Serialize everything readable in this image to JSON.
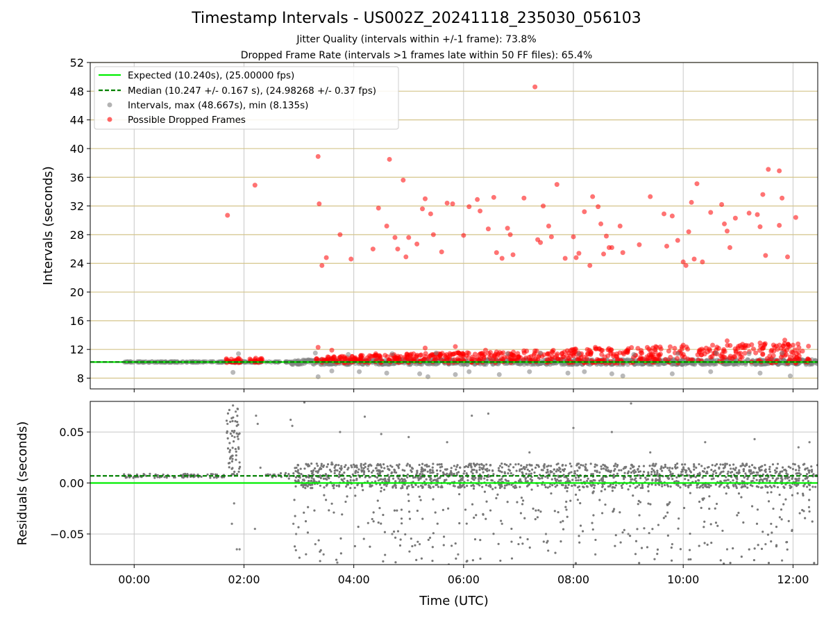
{
  "chart_data": [
    {
      "type": "scatter",
      "title": "Timestamp Intervals - US002Z_20241118_235030_056103",
      "subtitles": [
        "Jitter Quality (intervals within +/-1 frame): 73.8%",
        "Dropped Frame Rate (intervals >1 frames late within 50 FF files): 65.4%"
      ],
      "ylabel": "Intervals (seconds)",
      "ylim": [
        6.5,
        52
      ],
      "yticks": [
        "8",
        "12",
        "16",
        "20",
        "24",
        "28",
        "32",
        "36",
        "40",
        "44",
        "48",
        "52"
      ],
      "xlim_hours": [
        -0.8,
        12.45
      ],
      "grid": "y: horizontal tan lines; x: vertical gray lines at ticks",
      "legend_position": "top-left",
      "legend": [
        "Expected (10.240s), (25.00000 fps)",
        "Median (10.247 +/- 0.167 s), (24.98268 +/- 0.37 fps)",
        "Intervals, max (48.667s), min (8.135s)",
        "Possible Dropped Frames"
      ],
      "expected": 10.24,
      "median": 10.247,
      "series": [
        {
          "name": "Intervals, max (48.667s), min (8.135s)",
          "color": "#808080",
          "points": [
            [
              1.8,
              8.8
            ],
            [
              3.35,
              8.2
            ],
            [
              3.6,
              9.0
            ],
            [
              4.1,
              8.9
            ],
            [
              4.6,
              8.7
            ],
            [
              5.2,
              8.6
            ],
            [
              5.35,
              8.2
            ],
            [
              5.85,
              8.5
            ],
            [
              6.1,
              8.9
            ],
            [
              6.65,
              8.5
            ],
            [
              7.2,
              8.9
            ],
            [
              7.9,
              8.7
            ],
            [
              8.2,
              8.9
            ],
            [
              8.7,
              8.6
            ],
            [
              8.9,
              8.3
            ],
            [
              9.8,
              8.6
            ],
            [
              10.5,
              8.9
            ],
            [
              11.4,
              8.7
            ],
            [
              11.95,
              8.3
            ],
            [
              1.9,
              11.4
            ],
            [
              3.3,
              11.5
            ],
            [
              3.9,
              11.3
            ],
            [
              4.7,
              11.4
            ],
            [
              5.5,
              11.5
            ],
            [
              6.8,
              11.4
            ],
            [
              7.4,
              11.5
            ],
            [
              8.1,
              11.4
            ],
            [
              9.1,
              11.3
            ],
            [
              9.9,
              11.4
            ],
            [
              10.6,
              11.5
            ],
            [
              11.2,
              11.4
            ],
            [
              11.8,
              11.5
            ]
          ]
        },
        {
          "name": "Possible Dropped Frames",
          "color": "#ff0000",
          "points": [
            [
              1.7,
              30.7
            ],
            [
              2.2,
              34.9
            ],
            [
              3.35,
              38.9
            ],
            [
              3.37,
              32.3
            ],
            [
              3.42,
              23.7
            ],
            [
              3.5,
              24.8
            ],
            [
              3.75,
              28.0
            ],
            [
              3.95,
              24.6
            ],
            [
              4.35,
              26.0
            ],
            [
              4.45,
              31.7
            ],
            [
              4.6,
              29.2
            ],
            [
              4.65,
              38.5
            ],
            [
              4.75,
              27.6
            ],
            [
              4.8,
              26.0
            ],
            [
              4.9,
              35.6
            ],
            [
              4.95,
              24.9
            ],
            [
              5.0,
              27.6
            ],
            [
              5.15,
              26.7
            ],
            [
              5.25,
              31.6
            ],
            [
              5.3,
              33.0
            ],
            [
              5.4,
              30.9
            ],
            [
              5.45,
              28.0
            ],
            [
              5.6,
              25.6
            ],
            [
              5.7,
              32.4
            ],
            [
              5.8,
              32.3
            ],
            [
              6.0,
              27.9
            ],
            [
              6.1,
              31.9
            ],
            [
              6.25,
              32.9
            ],
            [
              6.3,
              31.3
            ],
            [
              6.45,
              28.8
            ],
            [
              6.55,
              33.2
            ],
            [
              6.6,
              25.5
            ],
            [
              6.7,
              24.7
            ],
            [
              6.8,
              28.9
            ],
            [
              6.85,
              28.0
            ],
            [
              6.9,
              25.2
            ],
            [
              7.1,
              33.1
            ],
            [
              7.3,
              48.6
            ],
            [
              7.35,
              27.3
            ],
            [
              7.4,
              26.9
            ],
            [
              7.45,
              32.0
            ],
            [
              7.55,
              29.2
            ],
            [
              7.6,
              27.7
            ],
            [
              7.7,
              35.0
            ],
            [
              7.85,
              24.7
            ],
            [
              8.0,
              27.7
            ],
            [
              8.05,
              24.8
            ],
            [
              8.1,
              25.4
            ],
            [
              8.2,
              31.2
            ],
            [
              8.3,
              23.7
            ],
            [
              8.35,
              33.3
            ],
            [
              8.45,
              31.9
            ],
            [
              8.5,
              29.5
            ],
            [
              8.55,
              25.3
            ],
            [
              8.6,
              27.8
            ],
            [
              8.65,
              26.2
            ],
            [
              8.7,
              26.2
            ],
            [
              8.85,
              29.2
            ],
            [
              8.9,
              25.5
            ],
            [
              9.2,
              26.6
            ],
            [
              9.4,
              33.3
            ],
            [
              9.65,
              30.9
            ],
            [
              9.7,
              26.4
            ],
            [
              9.8,
              30.6
            ],
            [
              9.9,
              27.2
            ],
            [
              10.0,
              24.2
            ],
            [
              10.05,
              23.7
            ],
            [
              10.1,
              28.4
            ],
            [
              10.15,
              32.5
            ],
            [
              10.2,
              24.6
            ],
            [
              10.25,
              35.1
            ],
            [
              10.35,
              24.2
            ],
            [
              10.5,
              31.1
            ],
            [
              10.7,
              32.2
            ],
            [
              10.75,
              29.5
            ],
            [
              10.8,
              28.5
            ],
            [
              10.85,
              26.2
            ],
            [
              10.95,
              30.3
            ],
            [
              11.2,
              31.0
            ],
            [
              11.35,
              30.8
            ],
            [
              11.4,
              29.1
            ],
            [
              11.45,
              33.6
            ],
            [
              11.5,
              25.1
            ],
            [
              11.55,
              37.1
            ],
            [
              11.75,
              29.3
            ],
            [
              11.8,
              33.1
            ],
            [
              11.75,
              36.9
            ],
            [
              11.9,
              24.9
            ],
            [
              12.05,
              30.4
            ],
            [
              1.7,
              10.5
            ],
            [
              1.85,
              10.3
            ],
            [
              2.2,
              10.6
            ],
            [
              3.35,
              12.3
            ],
            [
              3.6,
              11.9
            ],
            [
              4.4,
              11.4
            ],
            [
              5.3,
              12.2
            ],
            [
              5.85,
              12.4
            ],
            [
              6.4,
              11.9
            ],
            [
              7.3,
              11.8
            ],
            [
              8.4,
              12.3
            ],
            [
              9.0,
              12.1
            ],
            [
              9.5,
              12.4
            ],
            [
              10.0,
              12.6
            ],
            [
              10.8,
              13.2
            ],
            [
              11.4,
              12.9
            ],
            [
              11.85,
              13.3
            ],
            [
              12.0,
              12.6
            ]
          ]
        }
      ]
    },
    {
      "type": "scatter",
      "ylabel": "Residuals (seconds)",
      "xlabel": "Time (UTC)",
      "ylim": [
        -0.08,
        0.08
      ],
      "yticks": [
        "0.05",
        "0.00",
        "−0.05"
      ],
      "xticks": [
        "00:00",
        "02:00",
        "04:00",
        "06:00",
        "08:00",
        "10:00",
        "12:00"
      ],
      "expected_residual": 0.0,
      "median_residual": 0.007,
      "series": [
        {
          "name": "Residuals",
          "color": "#808080",
          "points": [
            [
              1.7,
              0.058
            ],
            [
              1.75,
              0.06
            ],
            [
              1.8,
              0.076
            ],
            [
              1.83,
              0.045
            ],
            [
              1.85,
              0.07
            ],
            [
              1.9,
              0.035
            ],
            [
              1.78,
              -0.04
            ],
            [
              1.82,
              -0.02
            ],
            [
              1.87,
              -0.065
            ],
            [
              1.92,
              -0.065
            ],
            [
              2.22,
              0.066
            ],
            [
              2.25,
              0.058
            ],
            [
              2.2,
              -0.045
            ],
            [
              2.3,
              0.015
            ],
            [
              2.85,
              0.062
            ],
            [
              2.88,
              0.056
            ],
            [
              2.9,
              -0.04
            ],
            [
              2.95,
              -0.05
            ],
            [
              3.1,
              0.079
            ],
            [
              3.3,
              -0.06
            ],
            [
              3.45,
              -0.07
            ],
            [
              3.6,
              0.02
            ],
            [
              3.7,
              -0.078
            ],
            [
              3.75,
              0.05
            ],
            [
              4.2,
              0.065
            ],
            [
              4.5,
              0.048
            ],
            [
              4.7,
              -0.05
            ],
            [
              5.0,
              0.045
            ],
            [
              5.2,
              -0.06
            ],
            [
              5.7,
              0.04
            ],
            [
              5.9,
              -0.07
            ],
            [
              6.15,
              0.066
            ],
            [
              6.45,
              0.068
            ],
            [
              6.7,
              -0.04
            ],
            [
              7.2,
              0.03
            ],
            [
              7.5,
              -0.05
            ],
            [
              8.0,
              0.054
            ],
            [
              8.4,
              -0.07
            ],
            [
              8.7,
              0.05
            ],
            [
              9.0,
              -0.05
            ],
            [
              9.05,
              0.078
            ],
            [
              9.4,
              0.03
            ],
            [
              9.8,
              -0.06
            ],
            [
              10.1,
              -0.075
            ],
            [
              10.4,
              0.04
            ],
            [
              10.8,
              -0.065
            ],
            [
              11.3,
              0.043
            ],
            [
              11.5,
              -0.06
            ],
            [
              11.8,
              -0.076
            ],
            [
              12.1,
              0.035
            ],
            [
              12.3,
              0.04
            ]
          ]
        }
      ]
    }
  ]
}
